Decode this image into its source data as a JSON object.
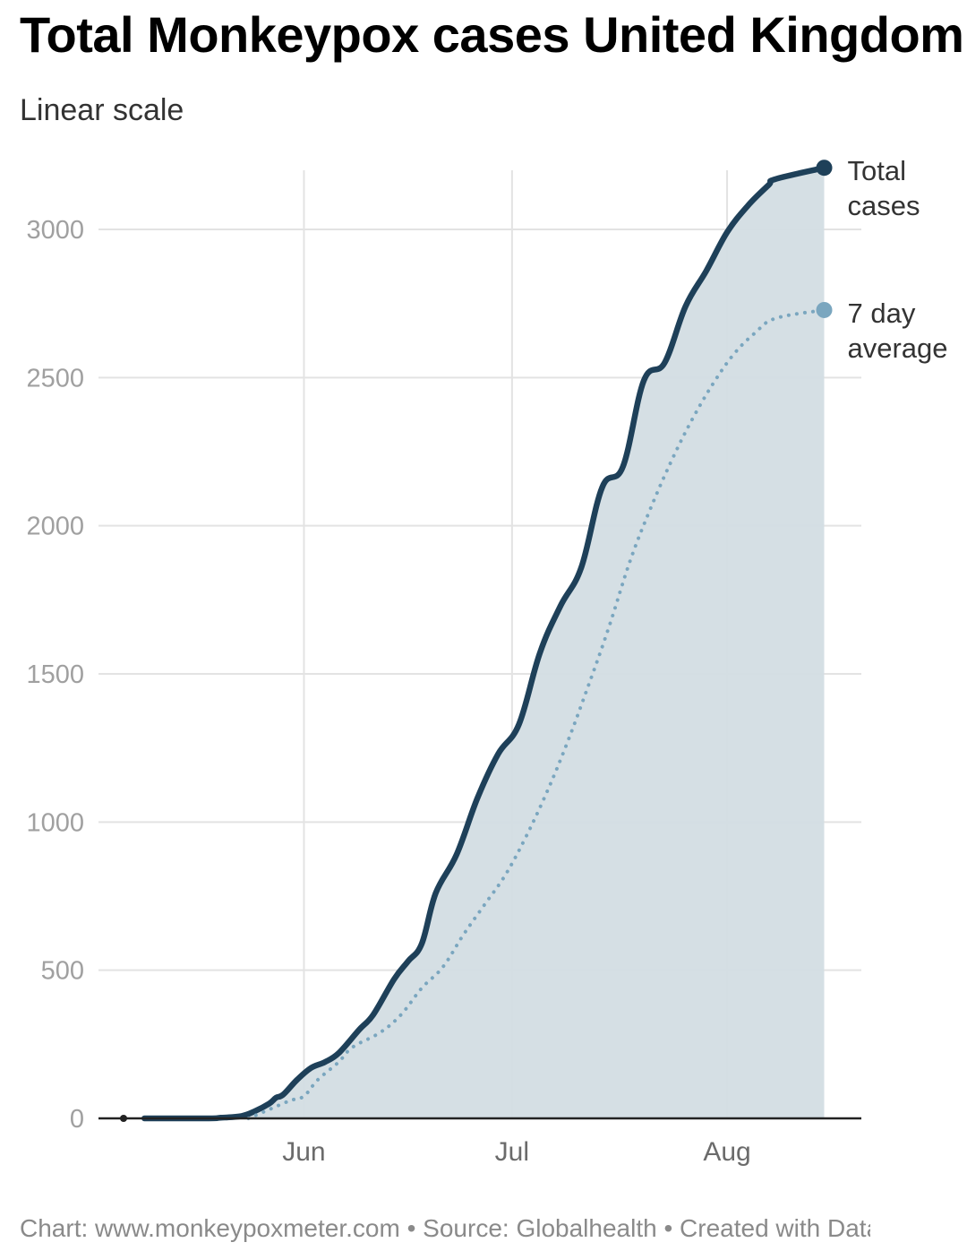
{
  "chart_data": {
    "type": "line",
    "title": "Total Monkeypox cases United Kingdom",
    "subtitle": "Linear scale",
    "xlabel": "",
    "ylabel": "",
    "x_range": [
      "2022-05-06",
      "2022-08-17"
    ],
    "ylim": [
      0,
      3200
    ],
    "y_ticks": [
      0,
      500,
      1000,
      1500,
      2000,
      2500,
      3000
    ],
    "x_ticks": [
      {
        "date": "2022-06-01",
        "label": "Jun"
      },
      {
        "date": "2022-07-01",
        "label": "Jul"
      },
      {
        "date": "2022-08-01",
        "label": "Aug"
      }
    ],
    "grid": true,
    "series": [
      {
        "name": "Total cases",
        "label_lines": [
          "Total",
          "cases"
        ],
        "color": "#1e4059",
        "style": "solid",
        "filled": true,
        "points": [
          [
            "2022-05-09",
            0
          ],
          [
            "2022-05-18",
            0
          ],
          [
            "2022-05-20",
            2
          ],
          [
            "2022-05-23",
            8
          ],
          [
            "2022-05-25",
            25
          ],
          [
            "2022-05-27",
            50
          ],
          [
            "2022-05-28",
            70
          ],
          [
            "2022-05-29",
            80
          ],
          [
            "2022-05-31",
            130
          ],
          [
            "2022-06-02",
            170
          ],
          [
            "2022-06-04",
            190
          ],
          [
            "2022-06-06",
            220
          ],
          [
            "2022-06-09",
            300
          ],
          [
            "2022-06-11",
            350
          ],
          [
            "2022-06-14",
            470
          ],
          [
            "2022-06-16",
            530
          ],
          [
            "2022-06-18",
            590
          ],
          [
            "2022-06-20",
            760
          ],
          [
            "2022-06-23",
            890
          ],
          [
            "2022-06-26",
            1080
          ],
          [
            "2022-06-29",
            1230
          ],
          [
            "2022-07-02",
            1330
          ],
          [
            "2022-07-05",
            1570
          ],
          [
            "2022-07-08",
            1730
          ],
          [
            "2022-07-11",
            1860
          ],
          [
            "2022-07-14",
            2130
          ],
          [
            "2022-07-17",
            2200
          ],
          [
            "2022-07-20",
            2490
          ],
          [
            "2022-07-23",
            2550
          ],
          [
            "2022-07-26",
            2740
          ],
          [
            "2022-07-29",
            2860
          ],
          [
            "2022-08-01",
            2990
          ],
          [
            "2022-08-04",
            3080
          ],
          [
            "2022-08-07",
            3150
          ],
          [
            "2022-08-08",
            3170
          ],
          [
            "2022-08-15",
            3208
          ]
        ]
      },
      {
        "name": "7 day average",
        "label_lines": [
          "7 day",
          "average"
        ],
        "color": "#7aa6bf",
        "style": "dotted",
        "filled": false,
        "points": [
          [
            "2022-05-24",
            0
          ],
          [
            "2022-05-27",
            30
          ],
          [
            "2022-05-30",
            60
          ],
          [
            "2022-06-01",
            75
          ],
          [
            "2022-06-03",
            130
          ],
          [
            "2022-06-06",
            190
          ],
          [
            "2022-06-08",
            240
          ],
          [
            "2022-06-12",
            290
          ],
          [
            "2022-06-15",
            350
          ],
          [
            "2022-06-18",
            440
          ],
          [
            "2022-06-21",
            510
          ],
          [
            "2022-06-24",
            620
          ],
          [
            "2022-06-27",
            720
          ],
          [
            "2022-06-30",
            820
          ],
          [
            "2022-07-03",
            950
          ],
          [
            "2022-07-06",
            1100
          ],
          [
            "2022-07-09",
            1270
          ],
          [
            "2022-07-12",
            1460
          ],
          [
            "2022-07-15",
            1660
          ],
          [
            "2022-07-18",
            1880
          ],
          [
            "2022-07-21",
            2060
          ],
          [
            "2022-07-24",
            2220
          ],
          [
            "2022-07-27",
            2360
          ],
          [
            "2022-07-30",
            2480
          ],
          [
            "2022-08-02",
            2580
          ],
          [
            "2022-08-05",
            2650
          ],
          [
            "2022-08-08",
            2700
          ],
          [
            "2022-08-15",
            2728
          ]
        ]
      }
    ],
    "annotations": [
      {
        "type": "point",
        "date": "2022-05-06",
        "value": 0
      }
    ],
    "footer": "Chart: www.monkeypoxmeter.com • Source: Globalhealth • Created with Datawrapper"
  }
}
